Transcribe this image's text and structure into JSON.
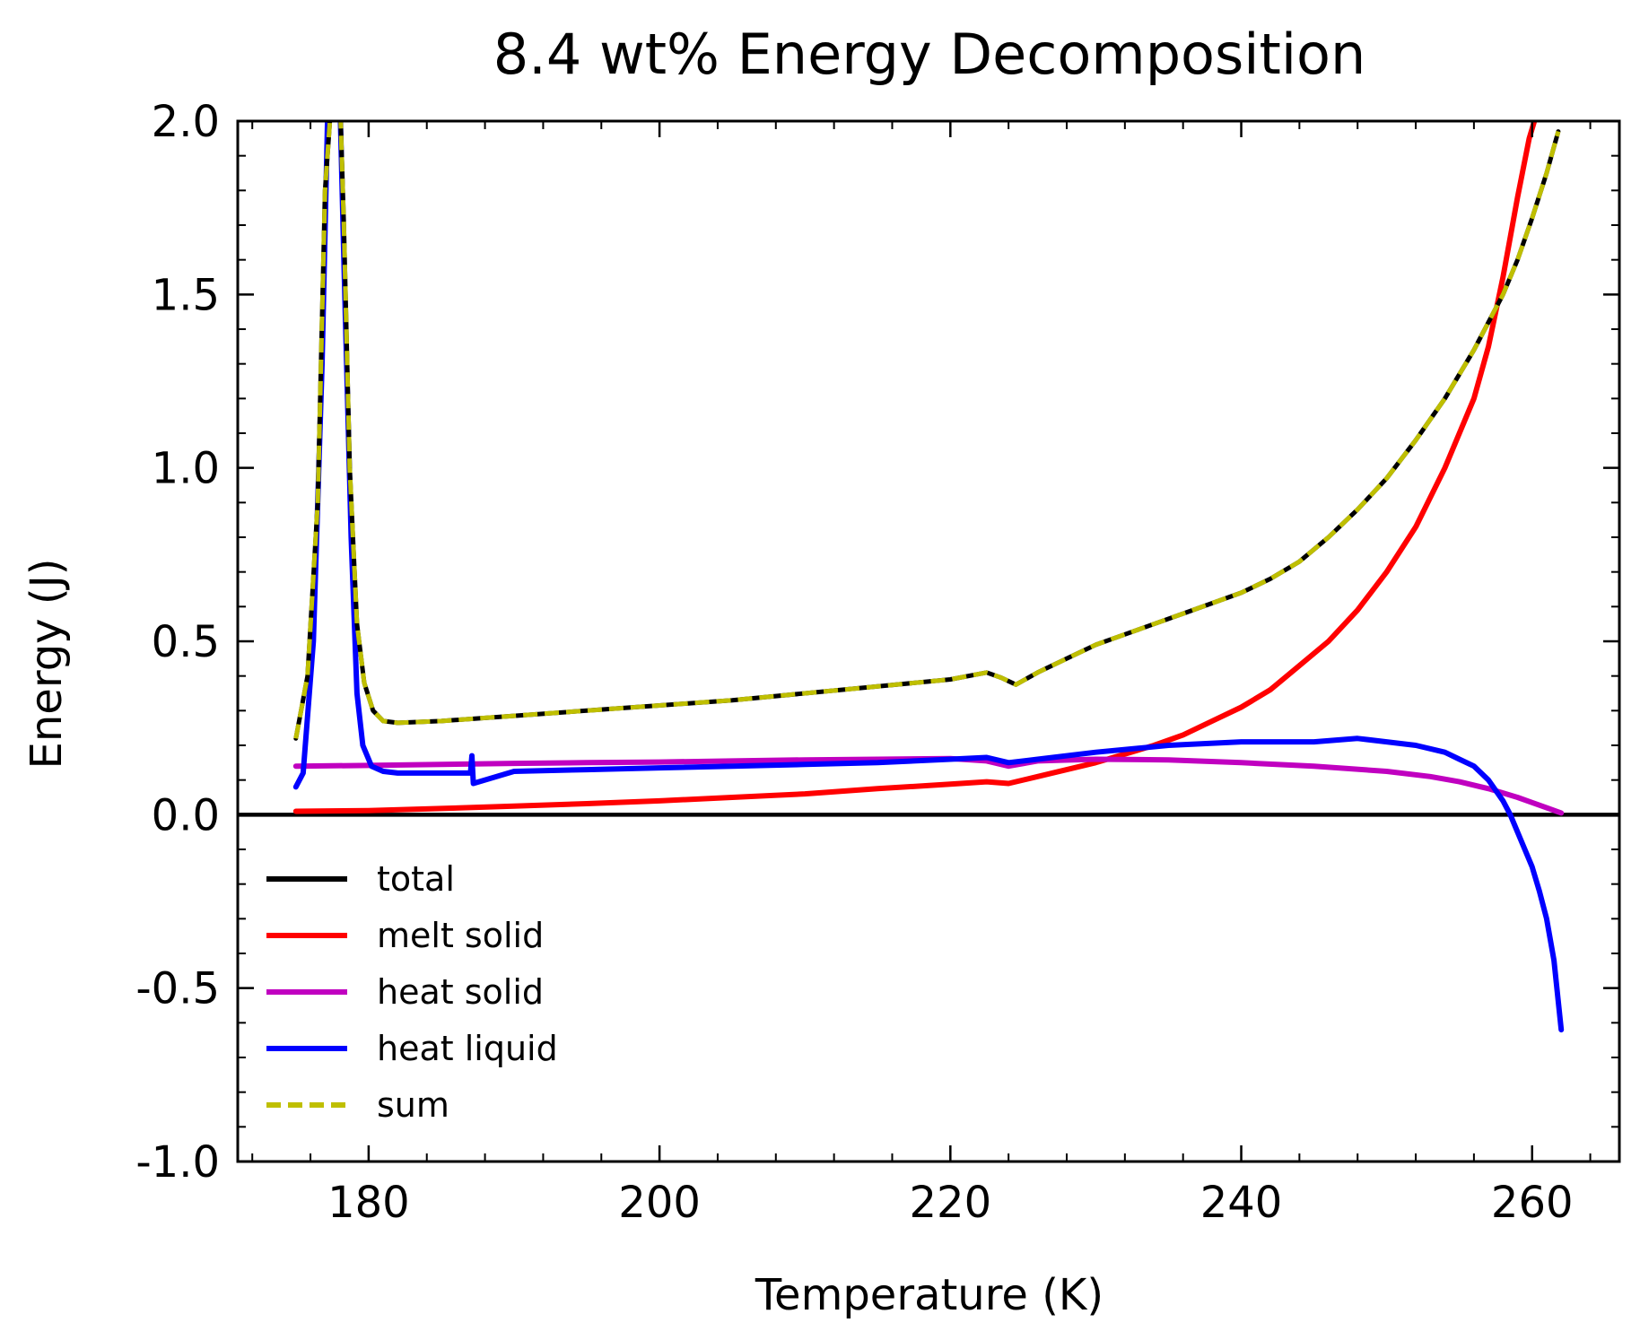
{
  "chart_data": {
    "type": "line",
    "title": "8.4 wt% Energy Decomposition",
    "xlabel": "Temperature (K)",
    "ylabel": "Energy (J)",
    "xlim": [
      171,
      266
    ],
    "ylim": [
      -1.0,
      2.0
    ],
    "xticks": [
      180,
      200,
      220,
      240,
      260
    ],
    "xtick_labels": [
      "180",
      "200",
      "220",
      "240",
      "260"
    ],
    "yticks": [
      -1.0,
      -0.5,
      0.0,
      0.5,
      1.0,
      1.5,
      2.0
    ],
    "ytick_labels": [
      "-1.0",
      "-0.5",
      "0.0",
      "0.5",
      "1.0",
      "1.5",
      "2.0"
    ],
    "zero_line": 0.0,
    "grid": false,
    "legend_position": "lower-left",
    "series": [
      {
        "name": "total",
        "color": "#000000",
        "style": "solid",
        "x": [
          175,
          175.8,
          176.5,
          177.0,
          177.5,
          178.0,
          178.3,
          178.7,
          179.2,
          179.7,
          180.3,
          181,
          182,
          185,
          190,
          195,
          200,
          205,
          210,
          215,
          220,
          222.5,
          223.5,
          224.5,
          226,
          228,
          230,
          232,
          234,
          236,
          238,
          240,
          242,
          244,
          246,
          248,
          250,
          252,
          254,
          256,
          258,
          259,
          260,
          261,
          261.8
        ],
        "y": [
          0.22,
          0.4,
          0.9,
          1.8,
          2.1,
          2.1,
          1.7,
          1.0,
          0.55,
          0.38,
          0.3,
          0.27,
          0.265,
          0.27,
          0.285,
          0.3,
          0.315,
          0.33,
          0.35,
          0.37,
          0.39,
          0.41,
          0.395,
          0.375,
          0.41,
          0.45,
          0.49,
          0.52,
          0.55,
          0.58,
          0.61,
          0.64,
          0.68,
          0.73,
          0.8,
          0.88,
          0.97,
          1.08,
          1.2,
          1.34,
          1.5,
          1.6,
          1.72,
          1.85,
          1.97
        ]
      },
      {
        "name": "melt solid",
        "color": "#ff0000",
        "style": "solid",
        "x": [
          175,
          180,
          185,
          190,
          195,
          200,
          205,
          210,
          215,
          220,
          222.5,
          224,
          226,
          228,
          230,
          232,
          234,
          236,
          238,
          240,
          242,
          244,
          246,
          248,
          250,
          252,
          254,
          256,
          257,
          258,
          259,
          259.8,
          260.3
        ],
        "y": [
          0.01,
          0.012,
          0.018,
          0.025,
          0.032,
          0.04,
          0.05,
          0.06,
          0.075,
          0.088,
          0.095,
          0.09,
          0.11,
          0.13,
          0.15,
          0.175,
          0.2,
          0.23,
          0.27,
          0.31,
          0.36,
          0.43,
          0.5,
          0.59,
          0.7,
          0.83,
          1.0,
          1.2,
          1.35,
          1.55,
          1.78,
          1.95,
          2.02
        ]
      },
      {
        "name": "heat solid",
        "color": "#c000c0",
        "style": "solid",
        "x": [
          175,
          180,
          185,
          190,
          195,
          200,
          205,
          210,
          215,
          220,
          222.5,
          224,
          226,
          230,
          235,
          240,
          245,
          250,
          253,
          255,
          257,
          259,
          261,
          262
        ],
        "y": [
          0.14,
          0.142,
          0.145,
          0.148,
          0.15,
          0.152,
          0.155,
          0.158,
          0.16,
          0.162,
          0.155,
          0.14,
          0.155,
          0.16,
          0.158,
          0.15,
          0.14,
          0.125,
          0.11,
          0.095,
          0.075,
          0.05,
          0.02,
          0.005
        ]
      },
      {
        "name": "heat liquid",
        "color": "#0000ff",
        "style": "solid",
        "x": [
          175,
          175.5,
          176.2,
          176.8,
          177.2,
          177.5,
          178.0,
          178.3,
          178.8,
          179.2,
          179.6,
          180.2,
          181,
          182,
          185,
          187,
          187.1,
          187.2,
          190,
          195,
          200,
          205,
          210,
          215,
          220,
          222.5,
          224,
          226,
          230,
          235,
          240,
          245,
          248,
          250,
          252,
          254,
          255,
          256,
          257,
          258,
          258.5,
          259,
          259.5,
          260,
          260.5,
          261,
          261.5,
          262
        ],
        "y": [
          0.08,
          0.12,
          0.5,
          1.3,
          2.05,
          2.1,
          2.1,
          1.6,
          0.8,
          0.35,
          0.2,
          0.14,
          0.125,
          0.12,
          0.12,
          0.12,
          0.17,
          0.09,
          0.125,
          0.13,
          0.135,
          0.14,
          0.145,
          0.15,
          0.16,
          0.165,
          0.15,
          0.16,
          0.18,
          0.2,
          0.21,
          0.21,
          0.22,
          0.21,
          0.2,
          0.18,
          0.16,
          0.14,
          0.1,
          0.04,
          0.0,
          -0.05,
          -0.1,
          -0.15,
          -0.22,
          -0.3,
          -0.42,
          -0.62
        ]
      },
      {
        "name": "sum",
        "color": "#bfbf00",
        "style": "dashed",
        "x": [
          175,
          175.8,
          176.5,
          177.0,
          177.5,
          178.0,
          178.3,
          178.7,
          179.2,
          179.7,
          180.3,
          181,
          182,
          185,
          190,
          195,
          200,
          205,
          210,
          215,
          220,
          222.5,
          223.5,
          224.5,
          226,
          228,
          230,
          232,
          234,
          236,
          238,
          240,
          242,
          244,
          246,
          248,
          250,
          252,
          254,
          256,
          258,
          259,
          260,
          261,
          261.8
        ],
        "y": [
          0.22,
          0.4,
          0.9,
          1.8,
          2.1,
          2.1,
          1.7,
          1.0,
          0.55,
          0.38,
          0.3,
          0.27,
          0.265,
          0.27,
          0.285,
          0.3,
          0.315,
          0.33,
          0.35,
          0.37,
          0.39,
          0.41,
          0.395,
          0.375,
          0.41,
          0.45,
          0.49,
          0.52,
          0.55,
          0.58,
          0.61,
          0.64,
          0.68,
          0.73,
          0.8,
          0.88,
          0.97,
          1.08,
          1.2,
          1.34,
          1.5,
          1.6,
          1.72,
          1.85,
          1.97
        ]
      }
    ]
  }
}
